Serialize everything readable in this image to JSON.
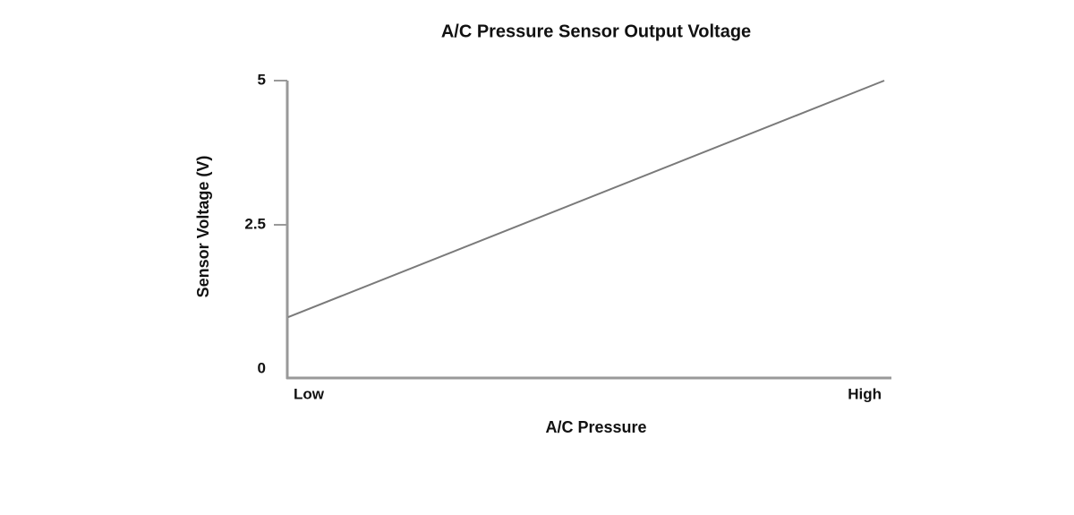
{
  "chart_data": {
    "type": "line",
    "title": "A/C Pressure Sensor Output Voltage",
    "x_label": "A/C Pressure",
    "y_label": "Sensor Voltage (V)",
    "categories": [
      "Low",
      "High"
    ],
    "values": [
      0.9,
      5
    ],
    "color": "#7a7a7a",
    "ylim": [
      0,
      5
    ],
    "yticks": [
      0,
      2.5,
      5
    ]
  }
}
